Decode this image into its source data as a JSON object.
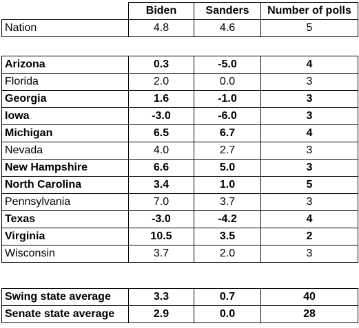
{
  "header": {
    "col1": "Biden",
    "col2": "Sanders",
    "col3": "Number of polls"
  },
  "nation": {
    "name": "Nation",
    "biden": "4.8",
    "sanders": "4.6",
    "polls": "5"
  },
  "states": [
    {
      "name": "Arizona",
      "biden": "0.3",
      "sanders": "-5.0",
      "polls": "4",
      "bold": true
    },
    {
      "name": "Florida",
      "biden": "2.0",
      "sanders": "0.0",
      "polls": "3",
      "bold": false
    },
    {
      "name": "Georgia",
      "biden": "1.6",
      "sanders": "-1.0",
      "polls": "3",
      "bold": true
    },
    {
      "name": "Iowa",
      "biden": "-3.0",
      "sanders": "-6.0",
      "polls": "3",
      "bold": true
    },
    {
      "name": "Michigan",
      "biden": "6.5",
      "sanders": "6.7",
      "polls": "4",
      "bold": true
    },
    {
      "name": "Nevada",
      "biden": "4.0",
      "sanders": "2.7",
      "polls": "3",
      "bold": false
    },
    {
      "name": "New Hampshire",
      "biden": "6.6",
      "sanders": "5.0",
      "polls": "3",
      "bold": true
    },
    {
      "name": "North Carolina",
      "biden": "3.4",
      "sanders": "1.0",
      "polls": "5",
      "bold": true
    },
    {
      "name": "Pennsylvania",
      "biden": "7.0",
      "sanders": "3.7",
      "polls": "3",
      "bold": false
    },
    {
      "name": "Texas",
      "biden": "-3.0",
      "sanders": "-4.2",
      "polls": "4",
      "bold": true
    },
    {
      "name": "Virginia",
      "biden": "10.5",
      "sanders": "3.5",
      "polls": "2",
      "bold": true
    },
    {
      "name": "Wisconsin",
      "biden": "3.7",
      "sanders": "2.0",
      "polls": "3",
      "bold": false
    }
  ],
  "averages": [
    {
      "name": "Swing state average",
      "biden": "3.3",
      "sanders": "0.7",
      "polls": "40"
    },
    {
      "name": "Senate state average",
      "biden": "2.9",
      "sanders": "0.0",
      "polls": "28"
    }
  ]
}
